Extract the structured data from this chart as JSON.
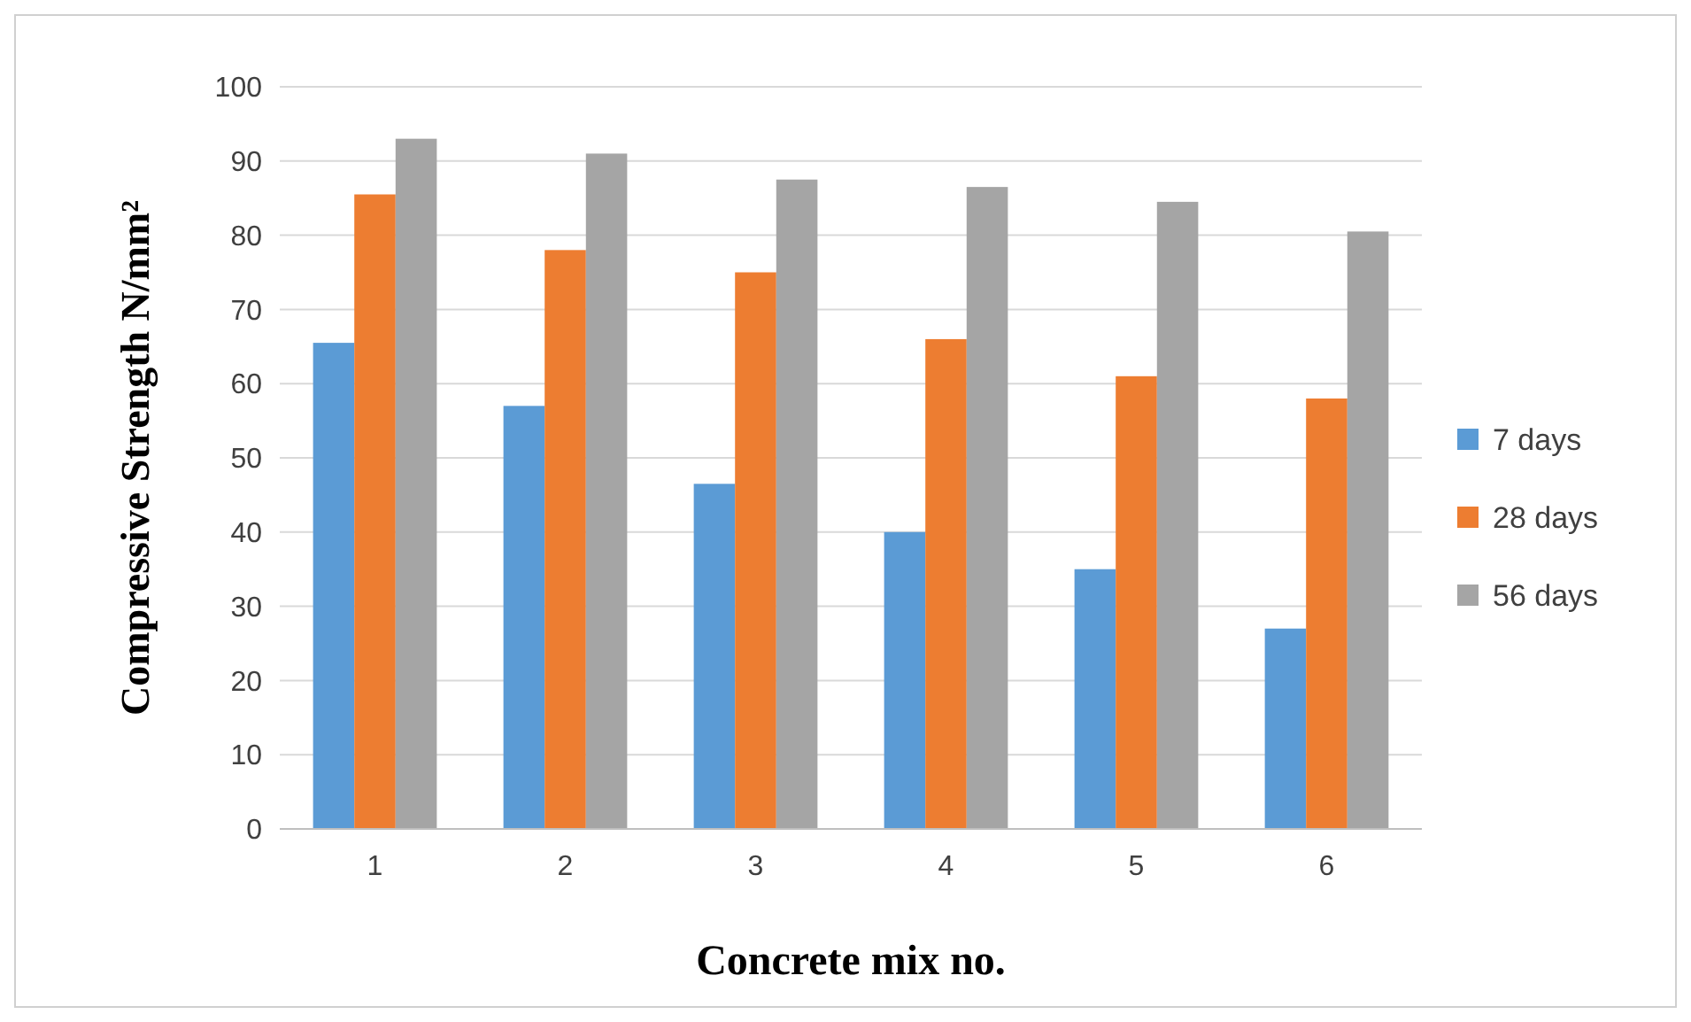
{
  "chart_data": {
    "type": "bar",
    "xlabel": "Concrete mix no.",
    "ylabel": "Compressive Strength N/mm²",
    "categories": [
      "1",
      "2",
      "3",
      "4",
      "5",
      "6"
    ],
    "series": [
      {
        "name": "7 days",
        "color": "#5b9bd5",
        "values": [
          65.5,
          57,
          46.5,
          40,
          35,
          27
        ]
      },
      {
        "name": "28 days",
        "color": "#ed7d31",
        "values": [
          85.5,
          78,
          75,
          66,
          61,
          58
        ]
      },
      {
        "name": "56 days",
        "color": "#a5a5a5",
        "values": [
          93,
          91,
          87.5,
          86.5,
          84.5,
          80.5
        ]
      }
    ],
    "ylim": [
      0,
      100
    ],
    "yticks": [
      0,
      10,
      20,
      30,
      40,
      50,
      60,
      70,
      80,
      90,
      100
    ],
    "grid": "y",
    "legend": "right"
  }
}
